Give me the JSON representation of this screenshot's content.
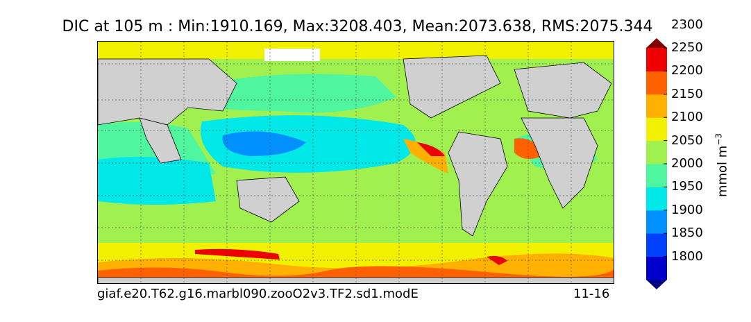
{
  "title": "DIC at 105 m : Min:1910.169, Max:3208.403, Mean:2073.638, RMS:2075.344",
  "footer": {
    "case_name": "giaf.e20.T62.g16.marbl090.zooO2v3.TF2.sd1.modE",
    "years": "11-16"
  },
  "colorbar": {
    "units": "mmol m",
    "units_exponent": "−3",
    "tick_labels": [
      "2300",
      "2250",
      "2200",
      "2150",
      "2100",
      "2050",
      "2000",
      "1950",
      "1900",
      "1850",
      "1800"
    ],
    "levels": [
      1800,
      1850,
      1900,
      1950,
      2000,
      2050,
      2100,
      2150,
      2200,
      2250,
      2300
    ],
    "colors": [
      "#000080",
      "#0000cd",
      "#0040ff",
      "#0090ff",
      "#00e8e8",
      "#50f5a0",
      "#a0f050",
      "#f0f000",
      "#ffb000",
      "#ff6000",
      "#ee0000",
      "#800000"
    ]
  },
  "map": {
    "land_color": "#d0d0d0",
    "sea_ice_color": "#ffffff",
    "gridlines": "dotted"
  }
}
